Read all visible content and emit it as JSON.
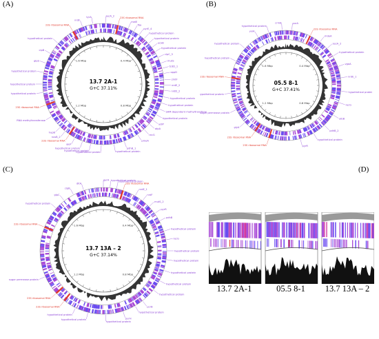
{
  "panels": {
    "a": {
      "letter": "(A)",
      "name": "13.7 2A-1",
      "gc": "G+C 37.11%",
      "ring_labels": [
        "1.6 Mbp",
        "0.4 Mbp",
        "1.2 Mbp",
        "0.8 Mbp"
      ],
      "genes": [
        {
          "t": "tyrA",
          "red": false,
          "a": 350
        },
        {
          "t": "secA_2",
          "red": false,
          "a": 2
        },
        {
          "t": "23S ribosomal RNA",
          "red": true,
          "a": 14
        },
        {
          "t": "melE",
          "red": false,
          "a": 24
        },
        {
          "t": "fba",
          "red": false,
          "a": 30
        },
        {
          "t": "pyrE_4",
          "red": false,
          "a": 36
        },
        {
          "t": "hypothetical protein",
          "red": false,
          "a": 42
        },
        {
          "t": "hypothetical protein",
          "red": false,
          "a": 48
        },
        {
          "t": "ycxB",
          "red": false,
          "a": 53
        },
        {
          "t": "hypothetical protein",
          "red": false,
          "a": 58
        },
        {
          "t": "clpC_3",
          "red": false,
          "a": 64
        },
        {
          "t": "mutS",
          "red": false,
          "a": 70
        },
        {
          "t": "tcdD_1",
          "red": false,
          "a": 75
        },
        {
          "t": "oppD",
          "red": false,
          "a": 80
        },
        {
          "t": "zmtF",
          "red": false,
          "a": 86
        },
        {
          "t": "nrdE_2",
          "red": false,
          "a": 91
        },
        {
          "t": "nrdD_2",
          "red": false,
          "a": 96
        },
        {
          "t": "hypothetical protein",
          "red": false,
          "a": 102
        },
        {
          "t": "hypothetical protein",
          "red": false,
          "a": 108
        },
        {
          "t": "SAM-dependent methyltransferase",
          "red": false,
          "a": 114
        },
        {
          "t": "hypothetical protein",
          "red": false,
          "a": 120
        },
        {
          "t": "ydiP",
          "red": false,
          "a": 126
        },
        {
          "t": "atpA",
          "red": false,
          "a": 131
        },
        {
          "t": "recG",
          "red": false,
          "a": 138
        },
        {
          "t": "pmoA",
          "red": false,
          "a": 146
        },
        {
          "t": "pdhB_1",
          "red": false,
          "a": 160
        },
        {
          "t": "hypothetical protein",
          "red": false,
          "a": 170
        },
        {
          "t": "hypothetical protein",
          "red": false,
          "a": 182
        },
        {
          "t": "hypothetical protein",
          "red": false,
          "a": 192
        },
        {
          "t": "hypothetical protein",
          "red": false,
          "a": 200
        },
        {
          "t": "yjeF",
          "red": false,
          "a": 208
        },
        {
          "t": "23S ribosomal RNA",
          "red": true,
          "a": 214
        },
        {
          "t": "nusB_2",
          "red": false,
          "a": 219
        },
        {
          "t": "hupB",
          "red": false,
          "a": 225
        },
        {
          "t": "RNA methyltransferase",
          "red": false,
          "a": 238
        },
        {
          "t": "23S ribosomal RNA",
          "red": true,
          "a": 250
        },
        {
          "t": "hypothetical protein",
          "red": false,
          "a": 262
        },
        {
          "t": "hypothetical protein",
          "red": false,
          "a": 270
        },
        {
          "t": "hypothetical protein",
          "red": false,
          "a": 281
        },
        {
          "t": "glpS",
          "red": false,
          "a": 290
        },
        {
          "t": "clpB",
          "red": false,
          "a": 300
        },
        {
          "t": "hypothetical protein",
          "red": false,
          "a": 312
        },
        {
          "t": "23S ribosomal RNA",
          "red": true,
          "a": 330
        },
        {
          "t": "nrdF",
          "red": false,
          "a": 340
        }
      ]
    },
    "b": {
      "letter": "(B)",
      "name": "05.5 8-1",
      "gc": "G+C 37.41%",
      "ring_labels": [
        "1.6 Mbp",
        "0.4 Mbp",
        "1.2 Mbp",
        "0.8 Mbp"
      ],
      "genes": [
        {
          "t": "crmB",
          "red": false,
          "a": 356
        },
        {
          "t": "purA",
          "red": false,
          "a": 6
        },
        {
          "t": "23S ribosomal RNA",
          "red": true,
          "a": 26
        },
        {
          "t": "mdeA",
          "red": false,
          "a": 38
        },
        {
          "t": "secA_2",
          "red": false,
          "a": 48
        },
        {
          "t": "hypothetical protein",
          "red": false,
          "a": 58
        },
        {
          "t": "vgaA",
          "red": false,
          "a": 70
        },
        {
          "t": "nrdE_1",
          "red": false,
          "a": 82
        },
        {
          "t": "hypothetical protein",
          "red": false,
          "a": 96
        },
        {
          "t": "recG",
          "red": false,
          "a": 108
        },
        {
          "t": "ylbB",
          "red": false,
          "a": 122
        },
        {
          "t": "pdhB_2",
          "red": false,
          "a": 136
        },
        {
          "t": "hypothetical protein",
          "red": false,
          "a": 150
        },
        {
          "t": "pyrR",
          "red": false,
          "a": 165
        },
        {
          "t": "23S ribosomal RNA",
          "red": true,
          "a": 198
        },
        {
          "t": "23S ribosomal RNA",
          "red": true,
          "a": 214
        },
        {
          "t": "glyA",
          "red": false,
          "a": 228
        },
        {
          "t": "sugar permease protein",
          "red": false,
          "a": 244
        },
        {
          "t": "hypothetical protein",
          "red": false,
          "a": 262
        },
        {
          "t": "23S ribosomal RNA",
          "red": true,
          "a": 278
        },
        {
          "t": "hypothetical protein",
          "red": false,
          "a": 296
        },
        {
          "t": "hypothetical protein",
          "red": false,
          "a": 312
        },
        {
          "t": "yxiA",
          "red": false,
          "a": 330
        },
        {
          "t": "hypothetical protein",
          "red": false,
          "a": 342
        }
      ]
    },
    "c": {
      "letter": "(C)",
      "name": "13.7 13A – 2",
      "gc": "G+C 37.14%",
      "ring_labels": [
        "1.6 Mbp",
        "0.4 Mbp",
        "1.2 Mbp",
        "0.8 Mbp"
      ],
      "genes": [
        {
          "t": "gyrA",
          "red": false,
          "a": 0
        },
        {
          "t": "hypothetical protein",
          "red": false,
          "a": 6
        },
        {
          "t": "hypothetical protein",
          "red": false,
          "a": 12
        },
        {
          "t": "23S ribosomal RNA",
          "red": true,
          "a": 18
        },
        {
          "t": "nrdE_1",
          "red": false,
          "a": 30
        },
        {
          "t": "nrdF",
          "red": false,
          "a": 38
        },
        {
          "t": "mutS_2",
          "red": false,
          "a": 46
        },
        {
          "t": "pyrR",
          "red": false,
          "a": 54
        },
        {
          "t": "pdhB",
          "red": false,
          "a": 62
        },
        {
          "t": "hypothetical protein",
          "red": false,
          "a": 72
        },
        {
          "t": "recG",
          "red": false,
          "a": 80
        },
        {
          "t": "hypothetical protein",
          "red": false,
          "a": 90
        },
        {
          "t": "hypothetical protein",
          "red": false,
          "a": 98
        },
        {
          "t": "hypothetical protein",
          "red": false,
          "a": 108
        },
        {
          "t": "hypothetical protein",
          "red": false,
          "a": 118
        },
        {
          "t": "hypothetical protein",
          "red": false,
          "a": 128
        },
        {
          "t": "pcrB",
          "red": false,
          "a": 142
        },
        {
          "t": "hypothetical protein",
          "red": false,
          "a": 150
        },
        {
          "t": "purH",
          "red": false,
          "a": 162
        },
        {
          "t": "hypothetical protein",
          "red": false,
          "a": 178
        },
        {
          "t": "hypothetical protein",
          "red": false,
          "a": 194
        },
        {
          "t": "hypothetical protein",
          "red": false,
          "a": 206
        },
        {
          "t": "23S ribosomal RNA",
          "red": true,
          "a": 218
        },
        {
          "t": "23S ribosomal RNA",
          "red": true,
          "a": 228
        },
        {
          "t": "sugar permease protein",
          "red": false,
          "a": 246
        },
        {
          "t": "23S ribosomal RNA",
          "red": true,
          "a": 292
        },
        {
          "t": "hypothetical protein",
          "red": false,
          "a": 312
        },
        {
          "t": "glpC",
          "red": false,
          "a": 322
        },
        {
          "t": "clpB",
          "red": false,
          "a": 332
        },
        {
          "t": "dltA",
          "red": false,
          "a": 342
        }
      ]
    },
    "d": {
      "letter": "(D)",
      "captions": [
        "13.7 2A-1",
        "05.5 8-1",
        "13.7 13A – 2"
      ]
    }
  },
  "colors": {
    "gene_blue": "#6a4cf0",
    "gene_purple": "#a94ad6",
    "rrna_red": "#e23b2e",
    "gc_black": "#111111",
    "label_purple": "#8a3fd6"
  }
}
